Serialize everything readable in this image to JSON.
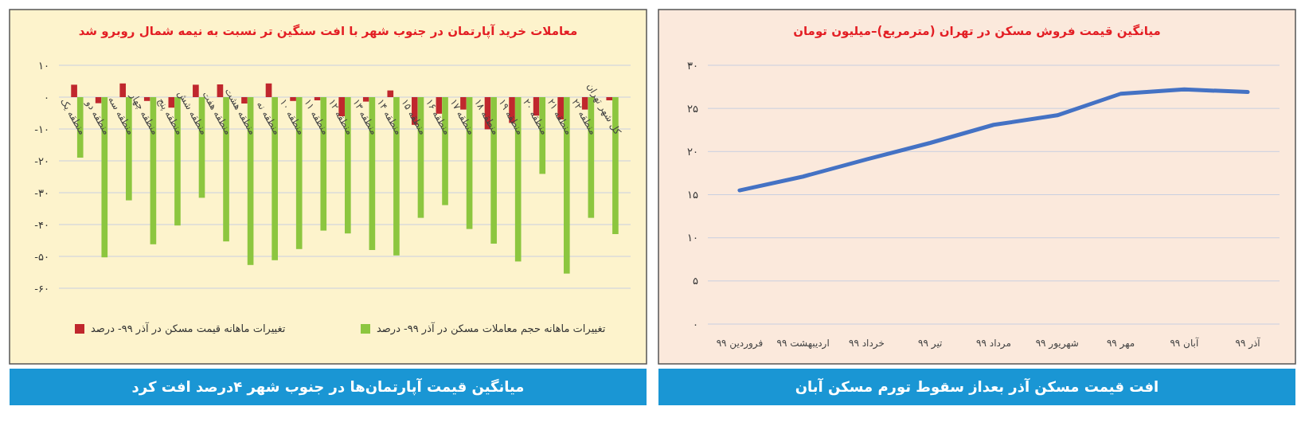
{
  "chart_data": [
    {
      "type": "bar",
      "title": "معاملات خرید آپارتمان در جنوب شهر با افت سنگین تر نسبت به نیمه شمال روبرو شد",
      "subtitle": "میانگین قیمت آپارتمان‌ها در جنوب شهر ۴درصد افت کرد",
      "categories": [
        "منطقه یک",
        "منطقه دو",
        "منطقه سه",
        "منطقه چهار",
        "منطقه پنج",
        "منطقه شش",
        "منطقه هفت",
        "منطقه هشت",
        "منطقه نه",
        "منطقه ۱۰",
        "منطقه ۱۱",
        "منطقه ۱۲",
        "منطقه ۱۳",
        "منطقه ۱۴",
        "منطقه ۱۵",
        "منطقه ۱۶",
        "منطقه ۱۷",
        "منطقه ۱۸",
        "منطقه ۱۹",
        "منطقه ۲۰",
        "منطقه ۲۱",
        "منطقه ۲۲",
        "کل شهر تهران"
      ],
      "series": [
        {
          "name": "تغییرات ماهانه قیمت مسکن در آذر ۹۹- درصد",
          "color": "#c0272d",
          "values": [
            3.9,
            -1.9,
            4.3,
            -1.2,
            -3.3,
            3.9,
            4,
            -2,
            4.3,
            -1.2,
            -1,
            -6,
            -1.4,
            2.1,
            -8.7,
            -5.2,
            -3.9,
            -10.1,
            -8.1,
            -5.8,
            -7,
            -3.9,
            -1
          ]
        },
        {
          "name": "تغییرات ماهانه حجم معاملات مسکن در آذر ۹۹- درصد",
          "color": "#8cc63f",
          "values": [
            -19,
            -50.3,
            -32.4,
            -46.2,
            -40.3,
            -31.6,
            -45.3,
            -52.7,
            -51.2,
            -47.7,
            -41.9,
            -42.8,
            -48,
            -49.7,
            -37.9,
            -33.9,
            -41.4,
            -46,
            -51.6,
            -24.1,
            -55.4,
            -37.9,
            -43
          ]
        }
      ],
      "ylim": [
        -60,
        10
      ],
      "yticks": [
        {
          "value": 10,
          "label": "۱۰"
        },
        {
          "value": 0,
          "label": "۰"
        },
        {
          "value": -10,
          "label": "-۱۰"
        },
        {
          "value": -20,
          "label": "-۲۰"
        },
        {
          "value": -30,
          "label": "-۳۰"
        },
        {
          "value": -40,
          "label": "-۴۰"
        },
        {
          "value": -50,
          "label": "-۵۰"
        },
        {
          "value": -60,
          "label": "-۶۰"
        }
      ],
      "grid": "y",
      "legend": "bottom"
    },
    {
      "type": "line",
      "title": "میانگین قیمت فروش مسکن در تهران (مترمربع)–میلیون تومان",
      "subtitle": "افت قیمت مسکن آذر بعداز سقوط تورم مسکن آبان",
      "categories": [
        "فروردین ۹۹",
        "اردیبهشت ۹۹",
        "خرداد ۹۹",
        "تیر ۹۹",
        "مرداد ۹۹",
        "شهریور ۹۹",
        "مهر ۹۹",
        "آبان ۹۹",
        "آذر ۹۹"
      ],
      "series": [
        {
          "color": "#4472c4",
          "values": [
            15.5,
            17.1,
            19.1,
            21,
            23.1,
            24.2,
            26.7,
            27.2,
            26.9
          ]
        }
      ],
      "ylim": [
        0,
        30
      ],
      "yticks": [
        {
          "value": 0,
          "label": "۰"
        },
        {
          "value": 5,
          "label": "۵"
        },
        {
          "value": 10,
          "label": "۱۰"
        },
        {
          "value": 15,
          "label": "۱۵"
        },
        {
          "value": 20,
          "label": "۲۰"
        },
        {
          "value": 25,
          "label": "۲۵"
        },
        {
          "value": 30,
          "label": "۳۰"
        }
      ],
      "grid": "y",
      "line_style": "solid"
    }
  ]
}
